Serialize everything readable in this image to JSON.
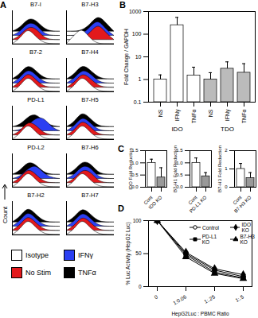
{
  "chart_data": [
    {
      "type": "area",
      "panel_label": "A",
      "y_label": "Count",
      "tick_labels": false,
      "legend": "lower left",
      "x": [
        0,
        1,
        2,
        3,
        4,
        5,
        6
      ],
      "xlim": [
        0,
        6
      ],
      "ylim": [
        0,
        2
      ],
      "series": [
        {
          "name": "Isotype",
          "color": "#ffffff"
        },
        {
          "name": "No Stim",
          "color": "#e3191c"
        },
        {
          "name": "IFNγ",
          "color": "#2b3ff2"
        },
        {
          "name": "TNFα",
          "color": "#000000"
        }
      ],
      "panels": [
        {
          "title": "B7-I",
          "values": [
            [
              0,
              0.3,
              1,
              0.4,
              0.05,
              0,
              0
            ],
            [
              0,
              0.2,
              0.8,
              0.7,
              0.1,
              0,
              0
            ],
            [
              0,
              0.2,
              0.8,
              0.7,
              0.1,
              0,
              0
            ],
            [
              0,
              0.2,
              0.8,
              0.7,
              0.15,
              0,
              0
            ]
          ]
        },
        {
          "title": "B7-H3",
          "values": [
            [
              0,
              0.5,
              1,
              0.3,
              0,
              0,
              0
            ],
            [
              0,
              0,
              0.05,
              0.4,
              1,
              0.4,
              0
            ],
            [
              0,
              0,
              0.05,
              0.5,
              1,
              0.35,
              0
            ],
            [
              0,
              0,
              0.05,
              0.4,
              1,
              0.5,
              0
            ]
          ]
        },
        {
          "title": "B7-2",
          "values": [
            [
              0,
              0.3,
              1,
              0.4,
              0.05,
              0,
              0
            ],
            [
              0,
              0.3,
              0.95,
              0.45,
              0.05,
              0,
              0
            ],
            [
              0,
              0.3,
              0.9,
              0.5,
              0.05,
              0,
              0
            ],
            [
              0,
              0.3,
              0.9,
              0.5,
              0.05,
              0,
              0
            ]
          ]
        },
        {
          "title": "B7-H4",
          "values": [
            [
              0,
              0.3,
              1,
              0.4,
              0.05,
              0,
              0
            ],
            [
              0,
              0.25,
              0.9,
              0.55,
              0.1,
              0,
              0
            ],
            [
              0,
              0.25,
              0.85,
              0.6,
              0.1,
              0,
              0
            ],
            [
              0,
              0.25,
              0.9,
              0.55,
              0.1,
              0,
              0
            ]
          ]
        },
        {
          "title": "PD-L1",
          "values": [
            [
              0,
              0.3,
              1,
              0.4,
              0.05,
              0,
              0
            ],
            [
              0,
              0.2,
              0.85,
              0.6,
              0.1,
              0,
              0
            ],
            [
              0,
              0.05,
              0.3,
              0.8,
              0.8,
              0.2,
              0
            ],
            [
              0,
              0.1,
              0.6,
              0.8,
              0.3,
              0.05,
              0
            ]
          ]
        },
        {
          "title": "B7-H5",
          "values": [
            [
              0,
              0.3,
              1,
              0.4,
              0.05,
              0,
              0
            ],
            [
              0,
              0.25,
              0.95,
              0.5,
              0.05,
              0,
              0
            ],
            [
              0,
              0.25,
              0.9,
              0.5,
              0.05,
              0,
              0
            ],
            [
              0,
              0.25,
              0.95,
              0.5,
              0.05,
              0,
              0
            ]
          ]
        },
        {
          "title": "PD-L2",
          "values": [
            [
              0,
              0.3,
              1,
              0.4,
              0.05,
              0,
              0
            ],
            [
              0,
              0.25,
              0.9,
              0.5,
              0.05,
              0,
              0
            ],
            [
              0,
              0.1,
              0.6,
              0.85,
              0.3,
              0.05,
              0
            ],
            [
              0,
              0.2,
              0.8,
              0.6,
              0.1,
              0,
              0
            ]
          ]
        },
        {
          "title": "B7-H6",
          "values": [
            [
              0,
              0.3,
              1,
              0.4,
              0.05,
              0,
              0
            ],
            [
              0,
              0.2,
              0.8,
              0.7,
              0.1,
              0,
              0
            ],
            [
              0,
              0.2,
              0.8,
              0.7,
              0.1,
              0,
              0
            ],
            [
              0,
              0.2,
              0.8,
              0.7,
              0.1,
              0,
              0
            ]
          ]
        },
        {
          "title": "B7-H2",
          "values": [
            [
              0,
              0.3,
              1,
              0.4,
              0.05,
              0,
              0
            ],
            [
              0,
              0.3,
              0.95,
              0.45,
              0.05,
              0,
              0
            ],
            [
              0,
              0.3,
              0.95,
              0.45,
              0.05,
              0,
              0
            ],
            [
              0,
              0.3,
              0.95,
              0.45,
              0.05,
              0,
              0
            ]
          ]
        },
        {
          "title": "B7-H7",
          "values": [
            [
              0,
              0.3,
              1,
              0.4,
              0.05,
              0,
              0
            ],
            [
              0,
              0.25,
              0.9,
              0.5,
              0.05,
              0,
              0
            ],
            [
              0,
              0.25,
              0.9,
              0.5,
              0.05,
              0,
              0
            ],
            [
              0,
              0.25,
              0.9,
              0.5,
              0.05,
              0,
              0
            ]
          ]
        }
      ]
    },
    {
      "type": "bar",
      "panel_label": "B",
      "y_label": "Fold Change / GAPDH",
      "log": "y",
      "categories": [
        "NS",
        "IFNγ",
        "TNFα",
        "NS",
        "IFNγ",
        "TNFα"
      ],
      "groups": [
        "IDO",
        "IDO",
        "IDO",
        "TDO",
        "TDO",
        "TDO"
      ],
      "values": [
        1,
        250,
        1.5,
        1,
        3,
        2
      ],
      "errors": [
        0.6,
        300,
        2,
        1,
        3,
        3
      ],
      "colors": [
        "#ffffff",
        "#ffffff",
        "#ffffff",
        "#bbbbbb",
        "#bbbbbb",
        "#bbbbbb"
      ],
      "ylim": [
        0.1,
        1000
      ],
      "yticks": [
        0.1,
        1,
        10,
        100,
        1000
      ]
    },
    {
      "type": "bar",
      "panel_label": "C",
      "panels": [
        {
          "y_label": "IDO Fold Reduction",
          "categories": [
            "Cont",
            "IDO KO"
          ],
          "values": [
            1,
            0.4
          ],
          "errors": [
            0.15,
            0.4
          ],
          "colors": [
            "#ffffff",
            "#999999"
          ],
          "ylim": [
            0,
            1.5
          ],
          "yticks": [
            {
              "value": 0,
              "label": "0.0"
            },
            0.5,
            {
              "value": 1,
              "label": "1.0"
            },
            1.5
          ]
        },
        {
          "y_label": "B7-H1 Fold Reduction",
          "categories": [
            "Cont",
            "PD-L1 KO"
          ],
          "values": [
            1,
            0.45
          ],
          "errors": [
            0.2,
            0.15
          ],
          "colors": [
            "#ffffff",
            "#999999"
          ],
          "ylim": [
            0,
            1.5
          ],
          "yticks": [
            {
              "value": 0,
              "label": "0.0"
            },
            0.5,
            {
              "value": 1,
              "label": "1.0"
            },
            1.5
          ]
        },
        {
          "y_label": "B7-H3 Fold Reduction",
          "categories": [
            "Cont",
            "B7-H3 KO"
          ],
          "values": [
            1,
            0.5
          ],
          "errors": [
            0.3,
            0.3
          ],
          "colors": [
            "#ffffff",
            "#999999"
          ],
          "ylim": [
            0,
            2
          ],
          "yticks": [
            0,
            1,
            2
          ]
        }
      ]
    },
    {
      "type": "line",
      "panel_label": "D",
      "x_label": "HepG2Luc : PBMC Ratio",
      "y_label": "% Luc Activity (HepG2 Luc)",
      "categories": [
        "0",
        "1:0.06",
        "1:.25",
        "1:.5"
      ],
      "ylim": [
        0,
        100
      ],
      "yticks": [
        0,
        50,
        100
      ],
      "legend": "upper right",
      "series": [
        {
          "name": "Control",
          "color": "#000000",
          "marker": "circle-open",
          "values": [
            100,
            50,
            25,
            15
          ]
        },
        {
          "name": "PD-L1 KO",
          "color": "#000000",
          "marker": "square",
          "values": [
            100,
            48,
            22,
            13
          ]
        },
        {
          "name": "IDO KO",
          "color": "#000000",
          "marker": "diamond",
          "values": [
            100,
            52,
            27,
            18
          ]
        },
        {
          "name": "B7-H3 KO",
          "color": "#000000",
          "marker": "triangle",
          "values": [
            100,
            45,
            20,
            12
          ]
        }
      ]
    }
  ]
}
